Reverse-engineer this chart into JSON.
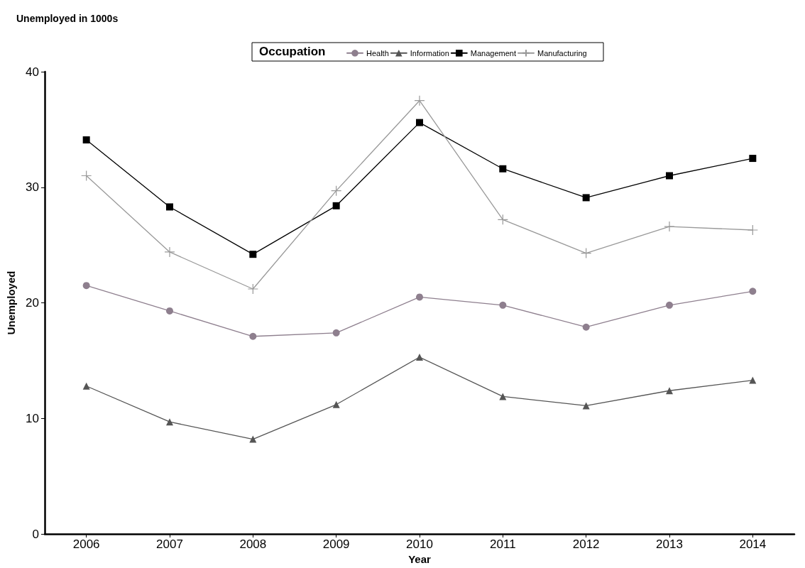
{
  "chart_data": {
    "type": "line",
    "title": "Unemployed in 1000s",
    "xlabel": "Year",
    "ylabel": "Unemployed",
    "legend_title": "Occupation",
    "categories": [
      "2006",
      "2007",
      "2008",
      "2009",
      "2010",
      "2011",
      "2012",
      "2013",
      "2014"
    ],
    "series": [
      {
        "name": "Health",
        "color": "#8e7f8e",
        "marker": "circle",
        "values": [
          21.5,
          19.3,
          17.1,
          17.4,
          20.5,
          19.8,
          17.9,
          19.8,
          21.0
        ]
      },
      {
        "name": "Information",
        "color": "#555555",
        "marker": "triangle",
        "values": [
          12.8,
          9.7,
          8.2,
          11.2,
          15.3,
          11.9,
          11.1,
          12.4,
          13.3
        ]
      },
      {
        "name": "Management",
        "color": "#000000",
        "marker": "square",
        "values": [
          34.1,
          28.3,
          24.2,
          28.4,
          35.6,
          31.6,
          29.1,
          31.0,
          32.5
        ]
      },
      {
        "name": "Manufacturing",
        "color": "#999999",
        "marker": "cross",
        "values": [
          31.0,
          24.4,
          21.2,
          29.7,
          37.5,
          27.2,
          24.3,
          26.6,
          26.3
        ]
      }
    ],
    "ylim": [
      0,
      40
    ],
    "yticks": [
      0,
      10,
      20,
      30,
      40
    ],
    "grid": false,
    "legend": "top",
    "line_style": "solid"
  }
}
